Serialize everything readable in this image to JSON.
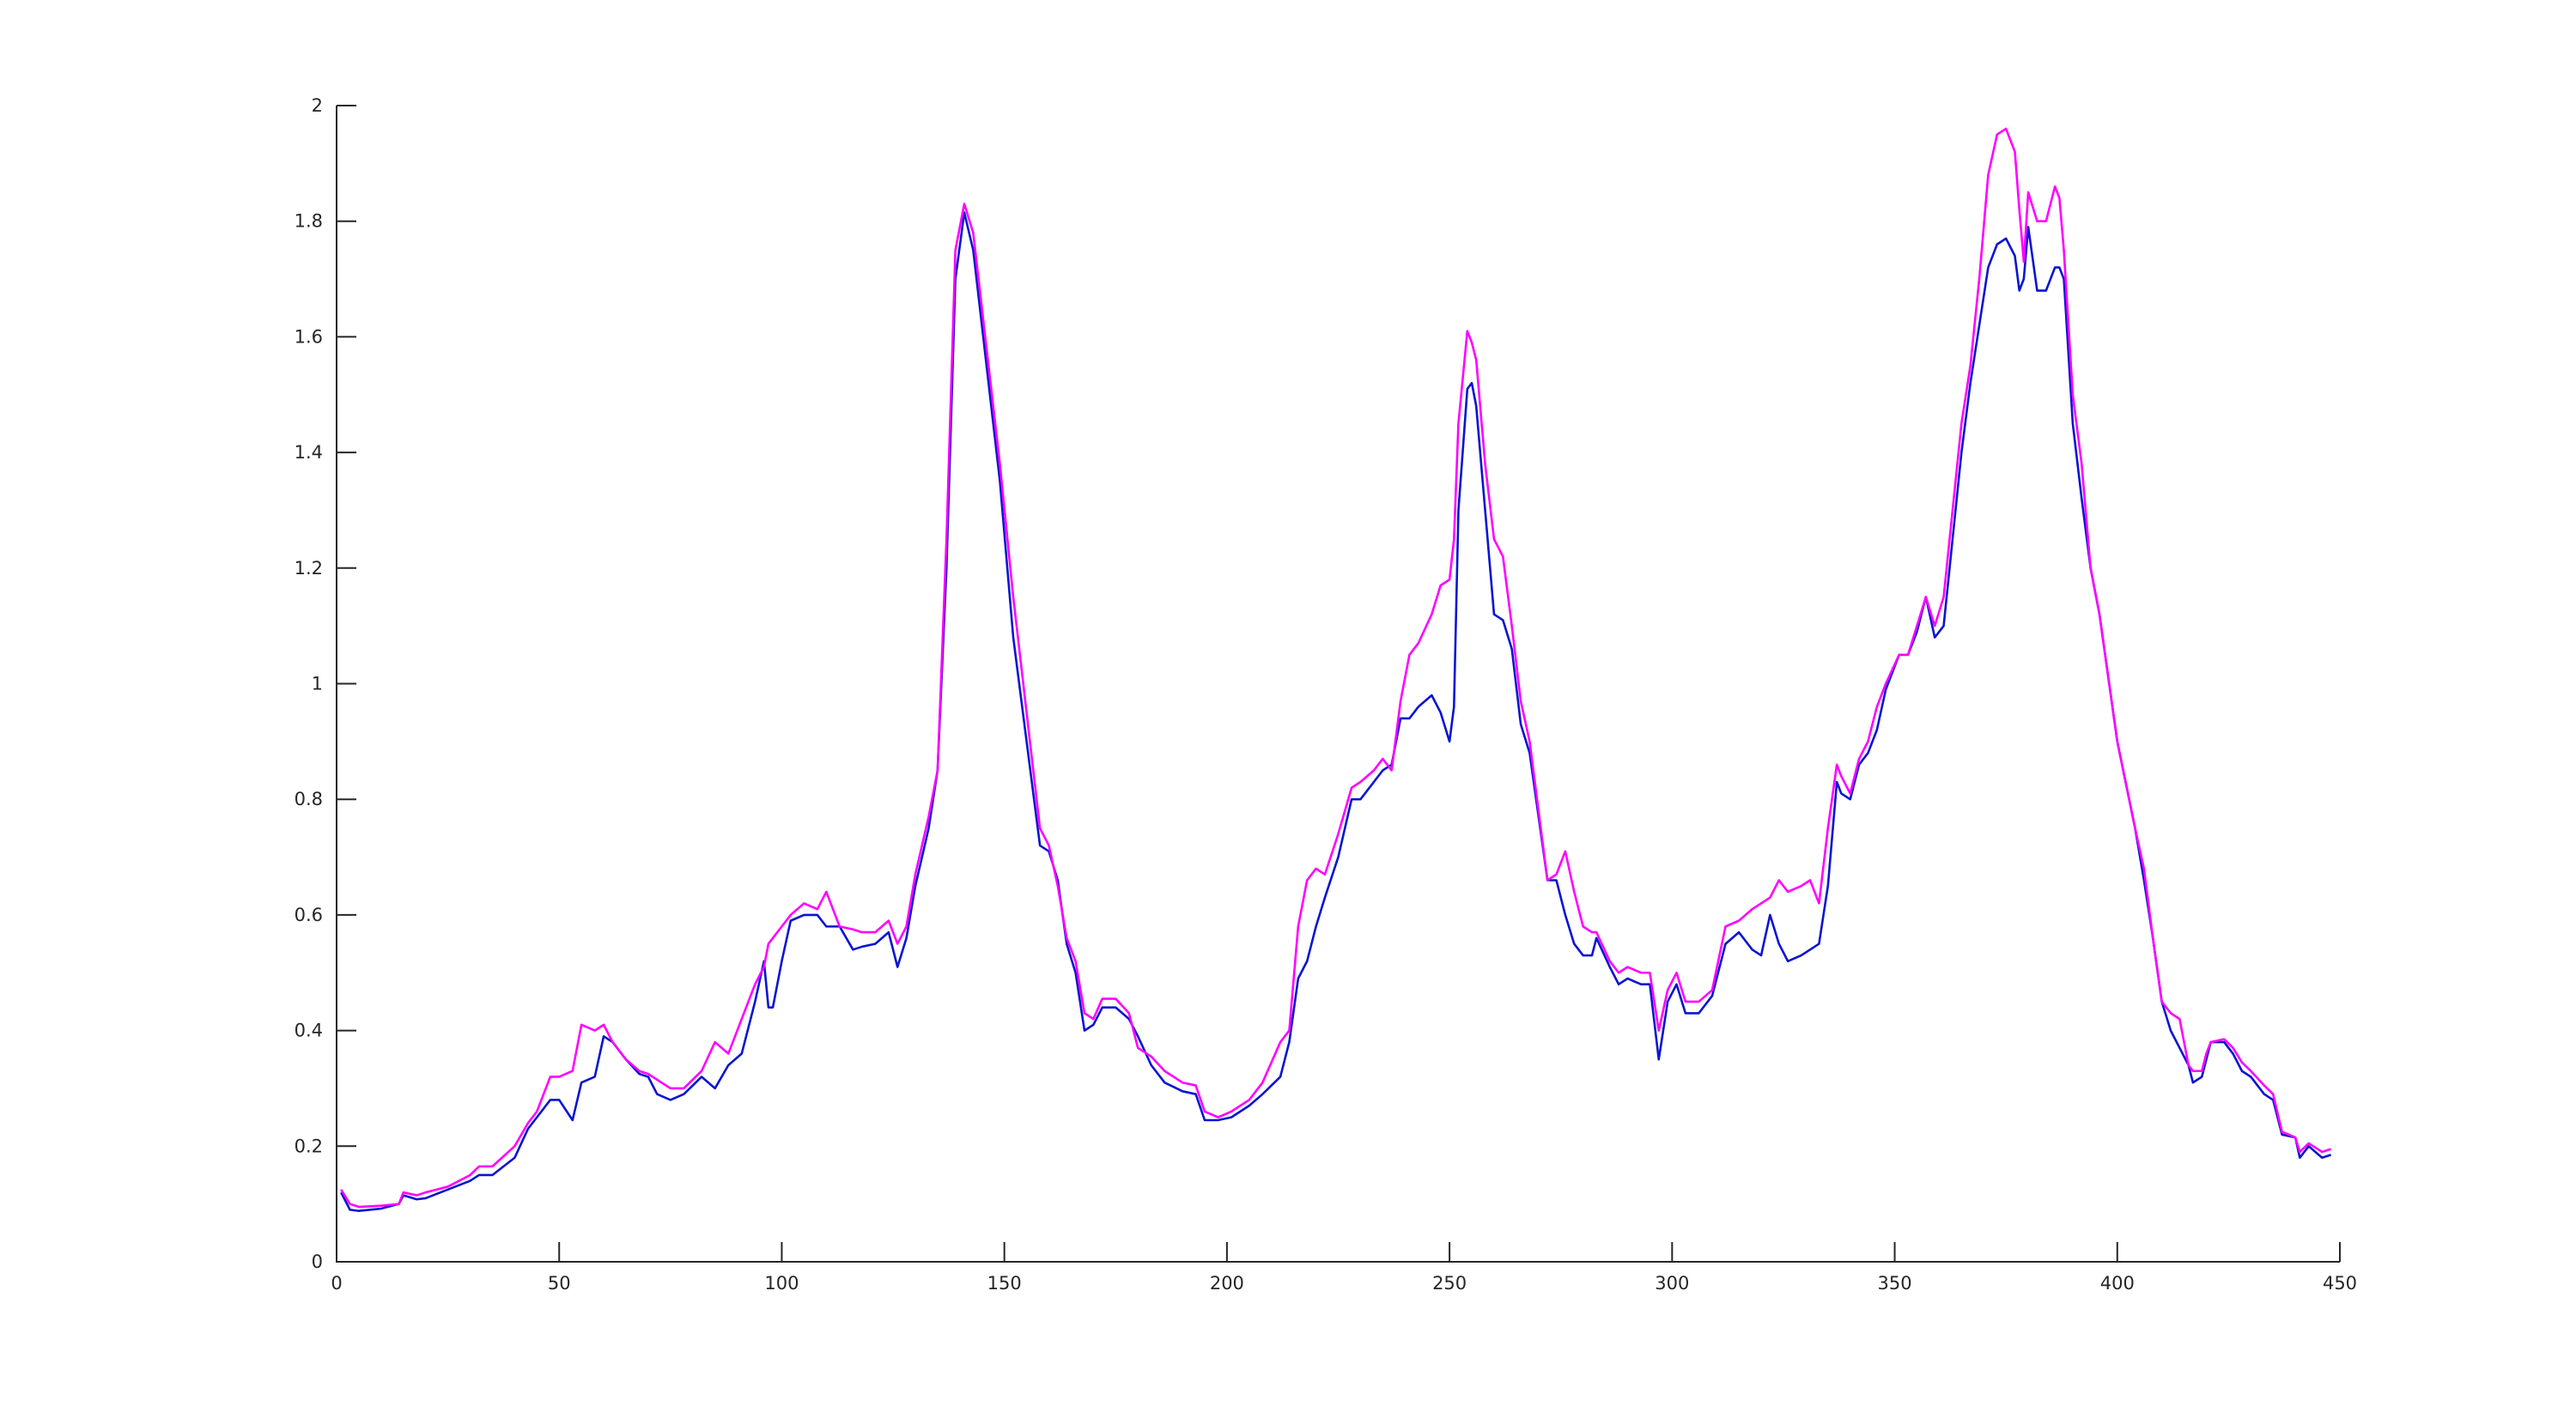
{
  "chart_data": {
    "type": "line",
    "x": [
      1,
      3,
      5,
      10,
      14,
      15,
      18,
      20,
      25,
      30,
      32,
      35,
      40,
      43,
      45,
      48,
      50,
      53,
      55,
      58,
      60,
      62,
      65,
      68,
      70,
      72,
      75,
      78,
      82,
      85,
      88,
      91,
      94,
      96,
      97,
      98,
      100,
      102,
      105,
      108,
      110,
      113,
      116,
      118,
      121,
      124,
      126,
      128,
      130,
      133,
      135,
      137,
      139,
      141,
      143,
      146,
      149,
      152,
      155,
      158,
      160,
      162,
      164,
      166,
      168,
      170,
      172,
      175,
      178,
      180,
      183,
      186,
      190,
      193,
      195,
      198,
      201,
      205,
      208,
      212,
      214,
      216,
      218,
      220,
      222,
      225,
      228,
      230,
      233,
      235,
      237,
      239,
      241,
      243,
      246,
      248,
      250,
      251,
      252,
      254,
      255,
      256,
      258,
      260,
      262,
      264,
      266,
      268,
      270,
      272,
      274,
      276,
      278,
      280,
      282,
      283,
      286,
      288,
      290,
      293,
      295,
      297,
      299,
      301,
      303,
      306,
      309,
      312,
      315,
      318,
      320,
      322,
      324,
      326,
      329,
      331,
      333,
      335,
      337,
      338,
      340,
      342,
      344,
      346,
      348,
      351,
      353,
      355,
      357,
      359,
      361,
      363,
      365,
      367,
      369,
      371,
      373,
      375,
      377,
      378,
      379,
      380,
      382,
      384,
      386,
      387,
      388,
      390,
      392,
      394,
      396,
      400,
      404,
      406,
      408,
      410,
      412,
      414,
      416,
      417,
      419,
      420,
      421,
      424,
      426,
      428,
      430,
      433,
      435,
      437,
      440,
      441,
      443,
      446,
      448
    ],
    "series": [
      {
        "color": "#0a14d2",
        "values": [
          0.12,
          0.09,
          0.088,
          0.092,
          0.1,
          0.115,
          0.108,
          0.11,
          0.125,
          0.14,
          0.15,
          0.15,
          0.18,
          0.23,
          0.25,
          0.28,
          0.28,
          0.245,
          0.31,
          0.32,
          0.39,
          0.38,
          0.35,
          0.325,
          0.32,
          0.29,
          0.28,
          0.29,
          0.32,
          0.3,
          0.34,
          0.36,
          0.45,
          0.52,
          0.44,
          0.44,
          0.52,
          0.59,
          0.6,
          0.6,
          0.58,
          0.58,
          0.54,
          0.545,
          0.55,
          0.57,
          0.51,
          0.56,
          0.65,
          0.75,
          0.85,
          1.2,
          1.7,
          1.815,
          1.75,
          1.55,
          1.35,
          1.08,
          0.9,
          0.72,
          0.71,
          0.66,
          0.55,
          0.5,
          0.4,
          0.41,
          0.44,
          0.44,
          0.42,
          0.39,
          0.34,
          0.31,
          0.295,
          0.29,
          0.245,
          0.245,
          0.25,
          0.27,
          0.29,
          0.32,
          0.38,
          0.49,
          0.52,
          0.58,
          0.63,
          0.7,
          0.8,
          0.8,
          0.83,
          0.85,
          0.86,
          0.94,
          0.94,
          0.96,
          0.98,
          0.95,
          0.9,
          0.96,
          1.3,
          1.51,
          1.52,
          1.48,
          1.3,
          1.12,
          1.11,
          1.06,
          0.93,
          0.88,
          0.77,
          0.66,
          0.66,
          0.6,
          0.55,
          0.53,
          0.53,
          0.56,
          0.51,
          0.48,
          0.49,
          0.48,
          0.48,
          0.35,
          0.45,
          0.48,
          0.43,
          0.43,
          0.46,
          0.55,
          0.57,
          0.54,
          0.53,
          0.6,
          0.55,
          0.52,
          0.53,
          0.54,
          0.55,
          0.65,
          0.83,
          0.81,
          0.8,
          0.86,
          0.88,
          0.92,
          0.99,
          1.05,
          1.05,
          1.09,
          1.15,
          1.08,
          1.1,
          1.25,
          1.4,
          1.52,
          1.62,
          1.72,
          1.76,
          1.77,
          1.74,
          1.68,
          1.7,
          1.79,
          1.68,
          1.68,
          1.72,
          1.72,
          1.7,
          1.45,
          1.32,
          1.2,
          1.12,
          0.9,
          0.75,
          0.66,
          0.56,
          0.45,
          0.4,
          0.37,
          0.34,
          0.31,
          0.32,
          0.35,
          0.38,
          0.38,
          0.36,
          0.33,
          0.32,
          0.29,
          0.28,
          0.22,
          0.215,
          0.18,
          0.2,
          0.18,
          0.185
        ]
      },
      {
        "color": "#ff00ff",
        "values": [
          0.125,
          0.1,
          0.095,
          0.097,
          0.1,
          0.12,
          0.115,
          0.12,
          0.13,
          0.15,
          0.165,
          0.165,
          0.2,
          0.24,
          0.26,
          0.32,
          0.32,
          0.33,
          0.41,
          0.4,
          0.41,
          0.38,
          0.35,
          0.33,
          0.325,
          0.315,
          0.3,
          0.3,
          0.33,
          0.38,
          0.36,
          0.42,
          0.48,
          0.51,
          0.55,
          0.56,
          0.58,
          0.6,
          0.62,
          0.61,
          0.64,
          0.58,
          0.575,
          0.57,
          0.57,
          0.59,
          0.55,
          0.58,
          0.67,
          0.77,
          0.85,
          1.25,
          1.75,
          1.83,
          1.78,
          1.58,
          1.38,
          1.15,
          0.95,
          0.75,
          0.72,
          0.65,
          0.56,
          0.52,
          0.43,
          0.42,
          0.455,
          0.455,
          0.43,
          0.37,
          0.355,
          0.33,
          0.31,
          0.305,
          0.26,
          0.25,
          0.26,
          0.28,
          0.31,
          0.38,
          0.4,
          0.58,
          0.66,
          0.68,
          0.67,
          0.74,
          0.82,
          0.83,
          0.85,
          0.87,
          0.85,
          0.97,
          1.05,
          1.07,
          1.12,
          1.17,
          1.18,
          1.25,
          1.45,
          1.61,
          1.59,
          1.56,
          1.38,
          1.25,
          1.22,
          1.1,
          0.97,
          0.9,
          0.78,
          0.66,
          0.67,
          0.71,
          0.64,
          0.58,
          0.57,
          0.57,
          0.52,
          0.5,
          0.51,
          0.5,
          0.5,
          0.4,
          0.47,
          0.5,
          0.45,
          0.45,
          0.47,
          0.58,
          0.59,
          0.61,
          0.62,
          0.63,
          0.66,
          0.64,
          0.65,
          0.66,
          0.62,
          0.75,
          0.86,
          0.84,
          0.81,
          0.87,
          0.9,
          0.96,
          1,
          1.05,
          1.05,
          1.1,
          1.15,
          1.1,
          1.15,
          1.3,
          1.45,
          1.55,
          1.7,
          1.88,
          1.95,
          1.96,
          1.92,
          1.82,
          1.73,
          1.85,
          1.8,
          1.8,
          1.86,
          1.84,
          1.75,
          1.5,
          1.38,
          1.2,
          1.12,
          0.9,
          0.75,
          0.68,
          0.56,
          0.45,
          0.43,
          0.42,
          0.34,
          0.33,
          0.33,
          0.36,
          0.38,
          0.385,
          0.37,
          0.345,
          0.33,
          0.305,
          0.29,
          0.225,
          0.215,
          0.19,
          0.205,
          0.19,
          0.195
        ]
      }
    ],
    "xlim": [
      0,
      450
    ],
    "xticks": [
      0,
      50,
      100,
      150,
      200,
      250,
      300,
      350,
      400,
      450
    ],
    "ylim": [
      0,
      2
    ],
    "yticks": [
      0,
      0.2,
      0.4,
      0.6,
      0.8,
      1,
      1.2,
      1.4,
      1.6,
      1.8,
      2
    ]
  }
}
